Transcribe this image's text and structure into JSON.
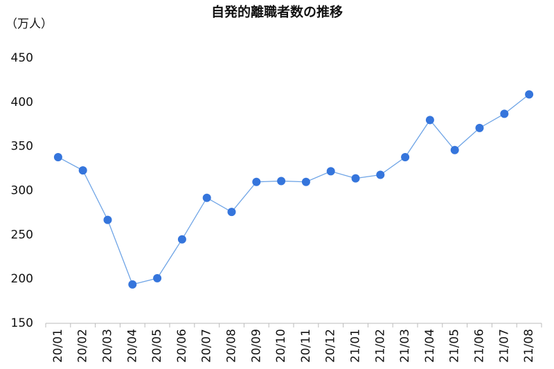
{
  "chart_data": {
    "type": "line",
    "title": "自発的離職者数の推移",
    "y_label": "（万人）",
    "categories": [
      "20/01",
      "20/02",
      "20/03",
      "20/04",
      "20/05",
      "20/06",
      "20/07",
      "20/08",
      "20/09",
      "20/10",
      "20/11",
      "20/12",
      "21/01",
      "21/02",
      "21/03",
      "21/04",
      "21/05",
      "21/06",
      "21/07",
      "21/08"
    ],
    "series": [
      {
        "name": "自発的離職者数",
        "color": "#3575dc",
        "values": [
          338,
          323,
          267,
          194,
          201,
          245,
          292,
          276,
          310,
          311,
          310,
          322,
          314,
          318,
          338,
          380,
          346,
          371,
          387,
          409
        ]
      }
    ],
    "ylim": [
      150,
      450
    ],
    "yticks": [
      150,
      200,
      250,
      300,
      350,
      400,
      450
    ],
    "grid": false
  }
}
